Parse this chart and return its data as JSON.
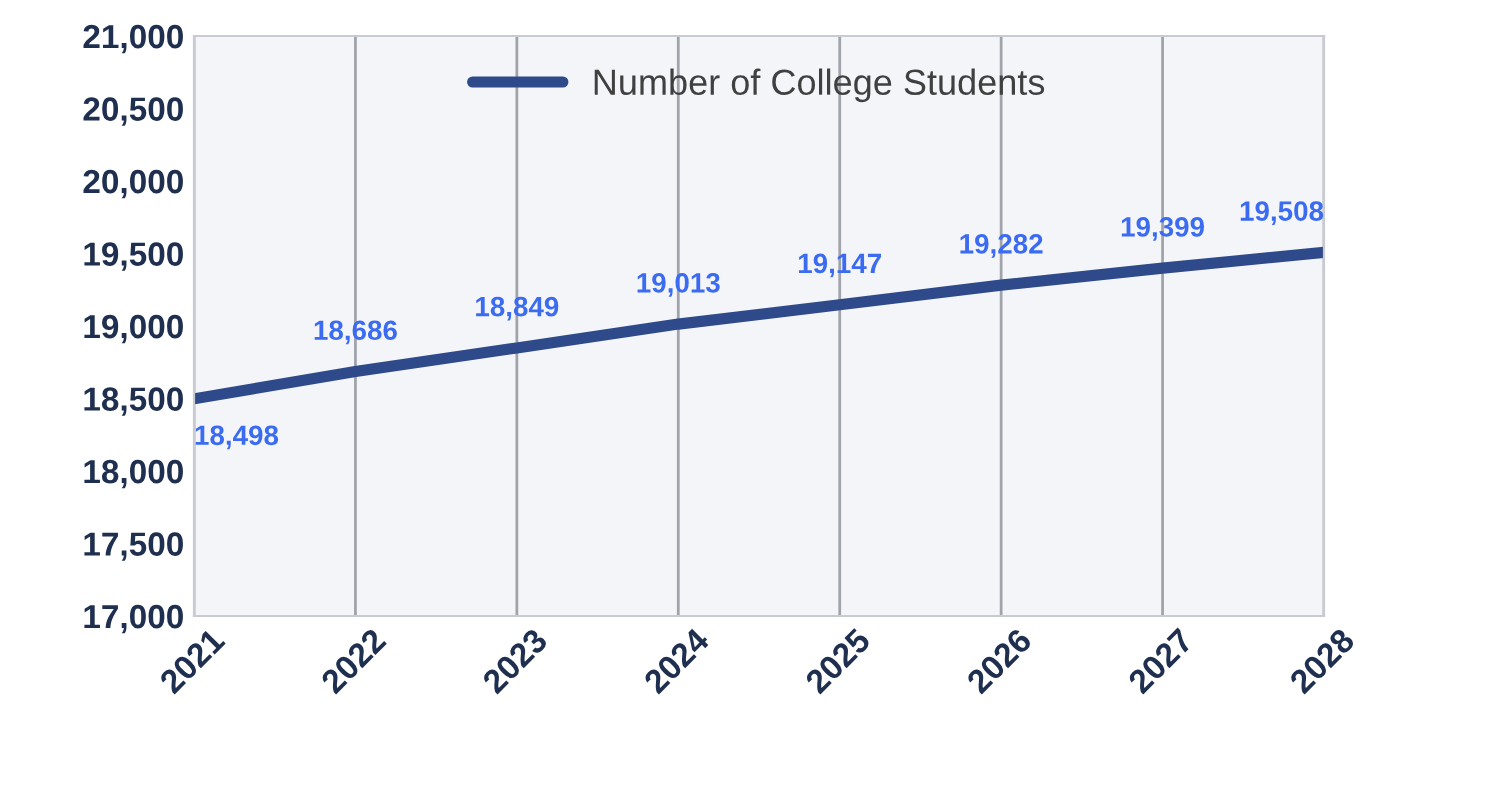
{
  "chart_data": {
    "type": "line",
    "x": [
      2021,
      2022,
      2023,
      2024,
      2025,
      2026,
      2027,
      2028
    ],
    "series": [
      {
        "name": "Number of College Students",
        "color": "#2e4a8a",
        "values": [
          18498,
          18686,
          18849,
          19013,
          19147,
          19282,
          19399,
          19508
        ],
        "value_labels": [
          "18,498",
          "18,686",
          "18,849",
          "19,013",
          "19,147",
          "19,282",
          "19,399",
          "19,508"
        ]
      }
    ],
    "xlim": [
      2021,
      2028
    ],
    "xticks": [
      2021,
      2022,
      2023,
      2024,
      2025,
      2026,
      2027,
      2028
    ],
    "ylim": [
      17000,
      21000
    ],
    "yticks": [
      {
        "value": 17000,
        "label": "17,000"
      },
      {
        "value": 17500,
        "label": "17,500"
      },
      {
        "value": 18000,
        "label": "18,000"
      },
      {
        "value": 18500,
        "label": "18,500"
      },
      {
        "value": 19000,
        "label": "19,000"
      },
      {
        "value": 19500,
        "label": "19,500"
      },
      {
        "value": 20000,
        "label": "20,000"
      },
      {
        "value": 20500,
        "label": "20,500"
      },
      {
        "value": 21000,
        "label": "21,000"
      }
    ],
    "grid": "x",
    "legend": "top",
    "marker": "none",
    "line_style": "solid"
  }
}
